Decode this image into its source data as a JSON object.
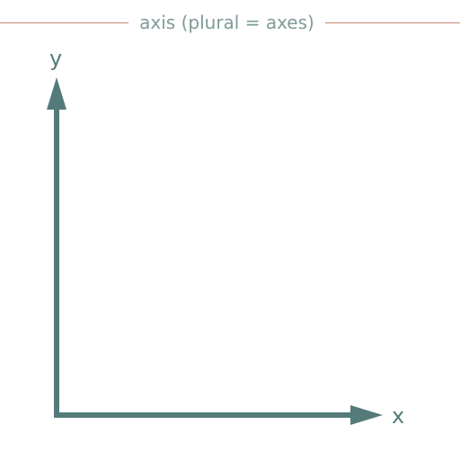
{
  "title": "axis (plural = axes)",
  "labels": {
    "x": "x",
    "y": "y"
  },
  "colors": {
    "axis": "#547b79",
    "title_text": "#7f9b99",
    "rule": "#c98872",
    "background": "#ffffff"
  }
}
